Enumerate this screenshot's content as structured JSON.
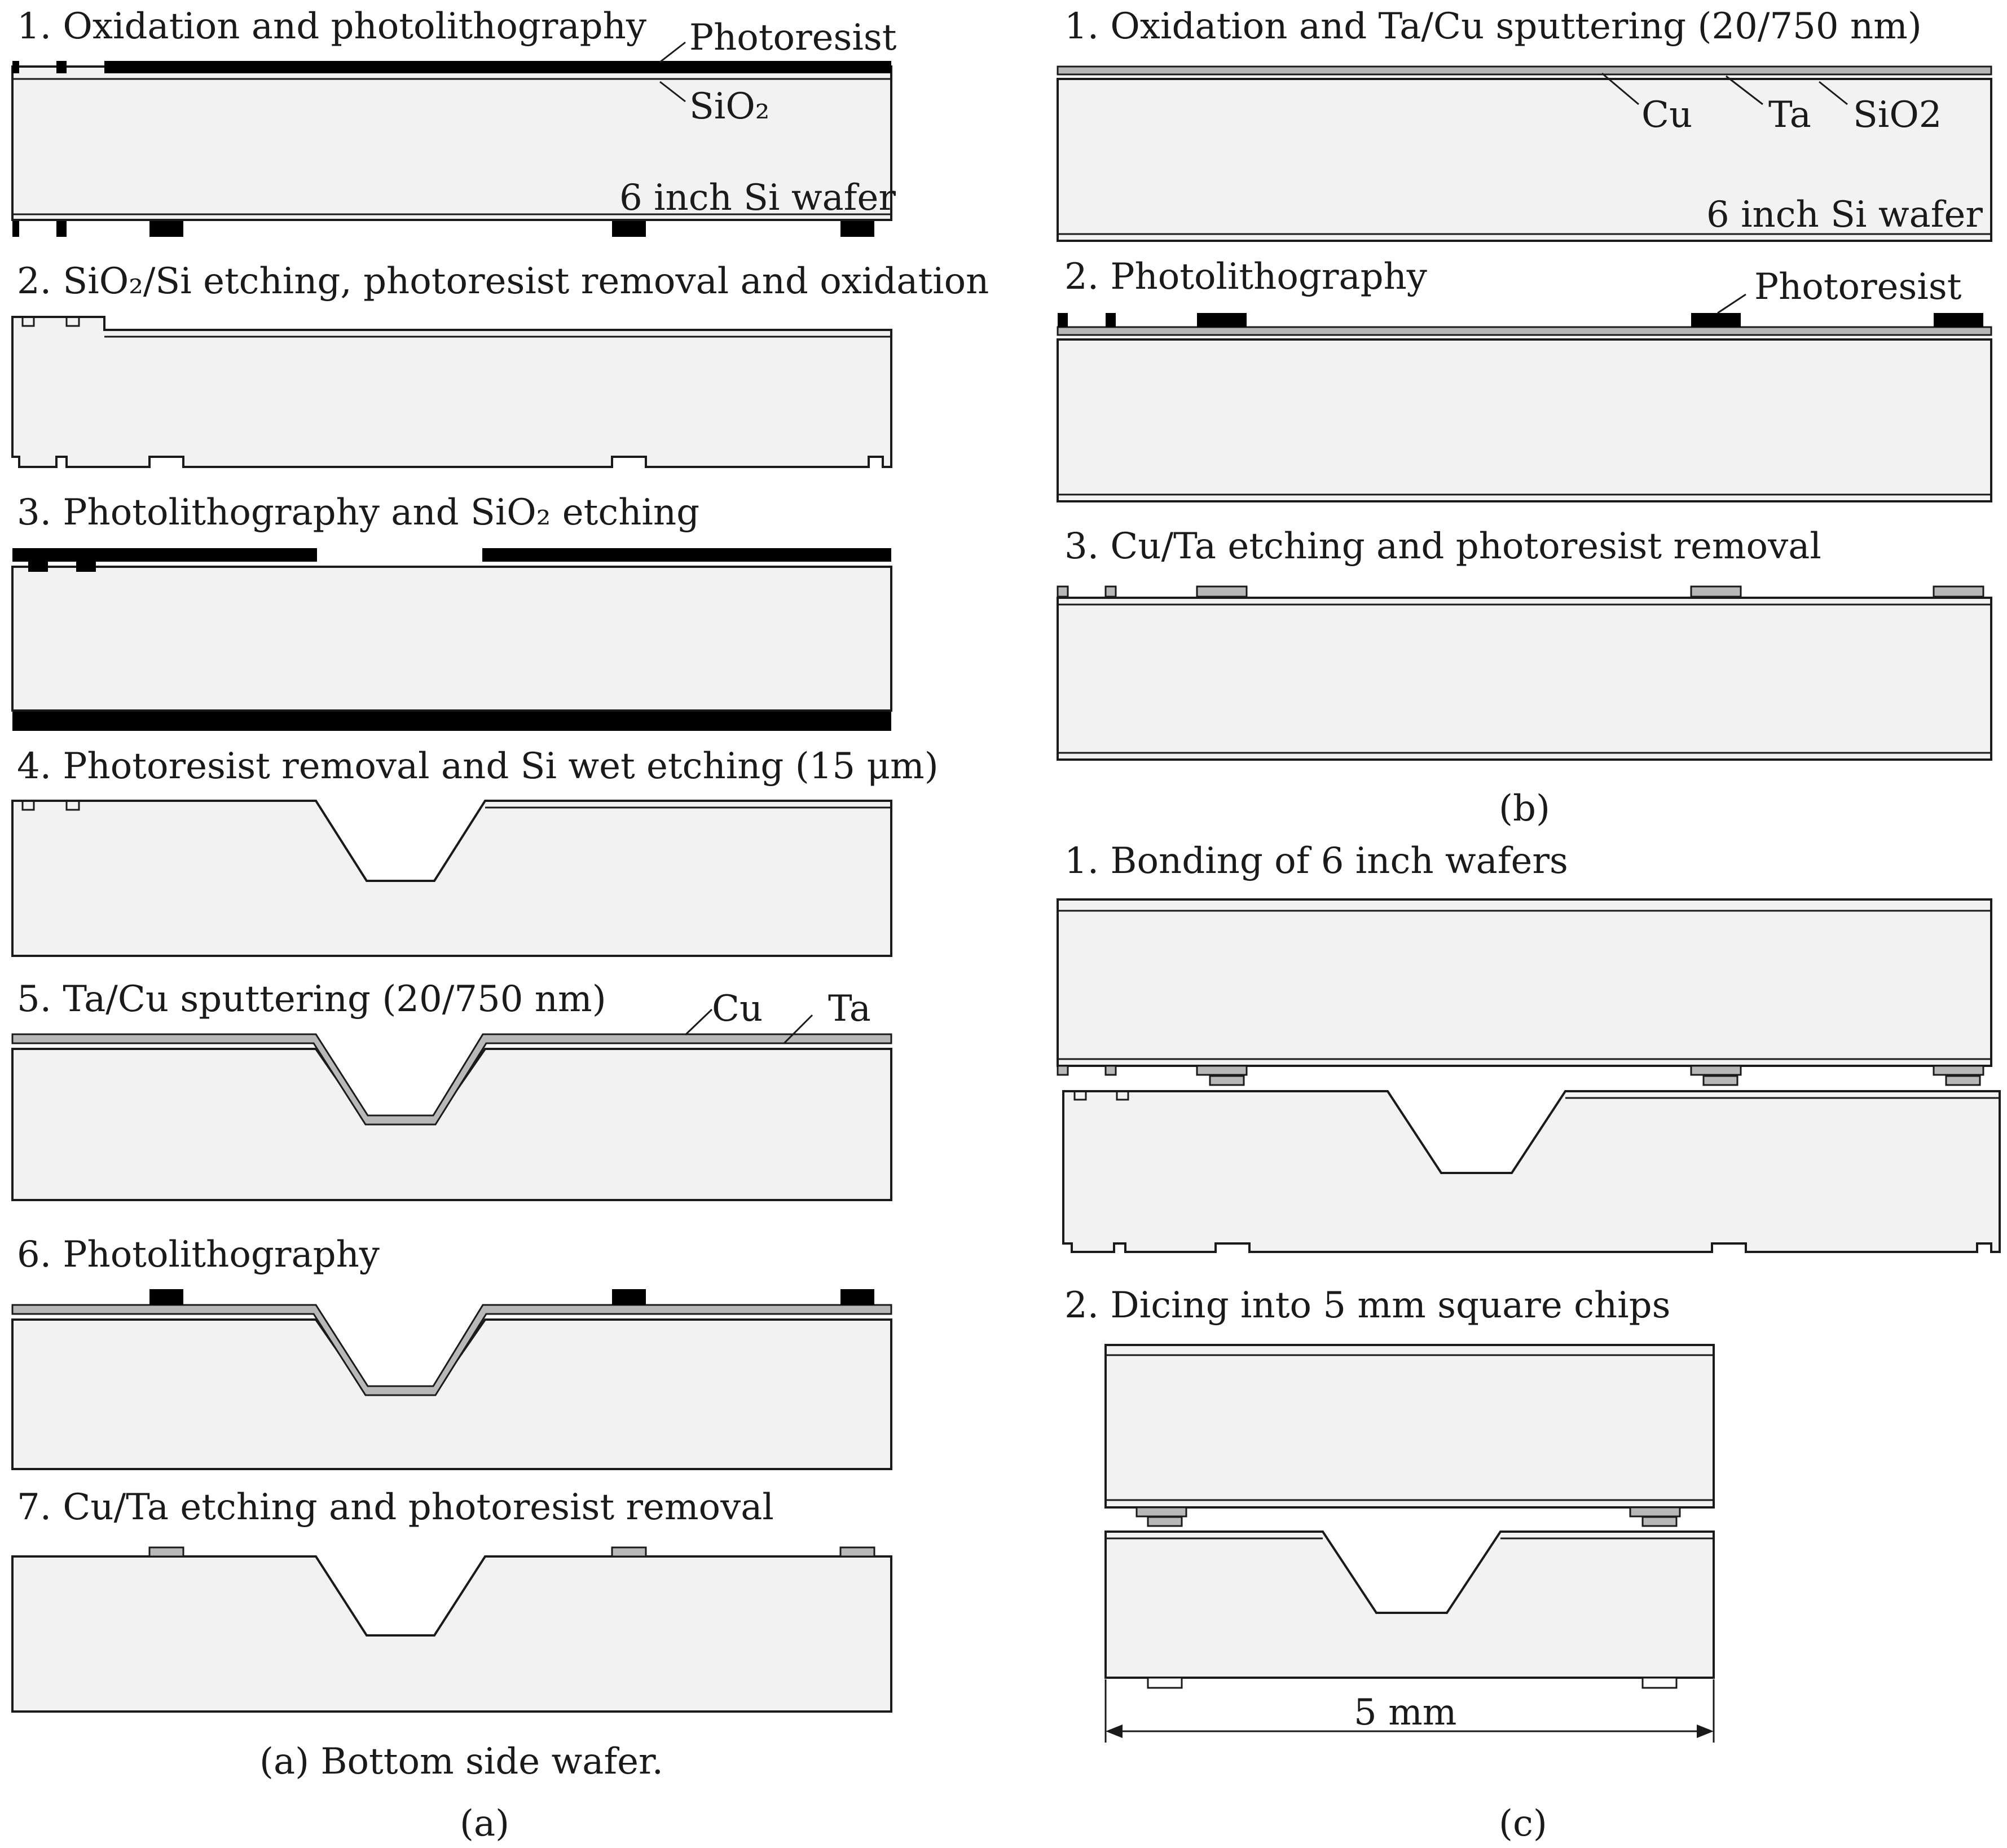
{
  "panel_a": {
    "steps": [
      "1. Oxidation and photolithography",
      "2. SiO₂/Si etching, photoresist removal and oxidation",
      "3. Photolithography and SiO₂ etching",
      "4. Photoresist removal and Si wet etching (15 μm)",
      "5. Ta/Cu sputtering (20/750 nm)",
      "6. Photolithography",
      "7. Cu/Ta etching and photoresist removal"
    ],
    "labels": {
      "photoresist": "Photoresist",
      "sio2": "SiO₂",
      "wafer": "6 inch Si wafer",
      "cu": "Cu",
      "ta": "Ta"
    },
    "caption": "(a) Bottom side wafer.",
    "letter": "(a)"
  },
  "panel_b": {
    "steps": [
      "1. Oxidation and Ta/Cu sputtering (20/750 nm)",
      "2. Photolithography",
      "3. Cu/Ta etching and photoresist removal"
    ],
    "labels": {
      "cu": "Cu",
      "ta": "Ta",
      "sio2": "SiO2",
      "wafer": "6 inch Si wafer",
      "photoresist": "Photoresist"
    },
    "letter": "(b)"
  },
  "panel_c": {
    "steps": [
      "1. Bonding of 6 inch wafers",
      "2. Dicing into 5 mm square chips"
    ],
    "dimension": "5 mm",
    "letter": "(c)"
  }
}
